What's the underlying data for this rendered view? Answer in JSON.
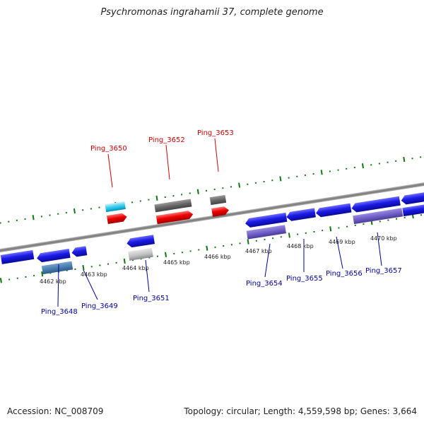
{
  "title": "Psychromonas ingrahamii 37, complete genome",
  "footer": {
    "accession": "Accession: NC_008709",
    "summary": "Topology: circular; Length: 4,559,598 bp; Genes: 3,664"
  },
  "kbp_labels": [
    "4462 kbp",
    "4463 kbp",
    "4464 kbp",
    "4465 kbp",
    "4466 kbp",
    "4467 kbp",
    "4468 kbp",
    "4469 kbp",
    "4470 kbp"
  ],
  "genes_top": [
    "Ping_3650",
    "Ping_3652",
    "Ping_3653"
  ],
  "genes_bottom": [
    "Ping_3648",
    "Ping_3649",
    "Ping_3651",
    "Ping_3654",
    "Ping_3655",
    "Ping_3656",
    "Ping_3657"
  ],
  "colors": {
    "forward": "#ee0000",
    "reverse": "#1111dd",
    "tick": "#117711",
    "backbone": "#888888",
    "label_forward": "#cc0000",
    "label_reverse": "#000099"
  }
}
